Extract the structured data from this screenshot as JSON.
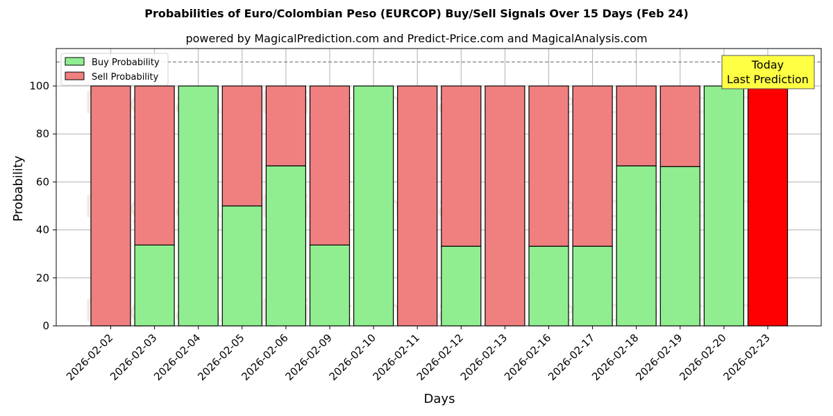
{
  "title": "Probabilities of Euro/Colombian Peso (EURCOP) Buy/Sell Signals Over 15 Days (Feb 24)",
  "subtitle": "powered by MagicalPrediction.com and Predict-Price.com and MagicalAnalysis.com",
  "legend": {
    "buy": "Buy Probability",
    "sell": "Sell Probability"
  },
  "annotation": {
    "line1": "Today",
    "line2": "Last Prediction"
  },
  "watermarks": [
    "MagicalAnalysis.com",
    "MagicalPrediction.com"
  ],
  "colors": {
    "buy": "#90ee90",
    "sell": "#f08080",
    "today": "#ff0000",
    "annotation_bg": "#ffff44"
  },
  "chart_data": {
    "type": "bar",
    "stacked": true,
    "title": "Probabilities of Euro/Colombian Peso (EURCOP) Buy/Sell Signals Over 15 Days (Feb 24)",
    "subtitle": "powered by MagicalPrediction.com and Predict-Price.com and MagicalAnalysis.com",
    "xlabel": "Days",
    "ylabel": "Probability",
    "ylim": [
      0,
      115
    ],
    "yticks": [
      0,
      20,
      40,
      60,
      80,
      100
    ],
    "reference_line": 110,
    "grid": true,
    "legend_position": "upper left",
    "categories": [
      "2026-02-02",
      "2026-02-03",
      "2026-02-04",
      "2026-02-05",
      "2026-02-06",
      "2026-02-09",
      "2026-02-10",
      "2026-02-11",
      "2026-02-12",
      "2026-02-13",
      "2026-02-16",
      "2026-02-17",
      "2026-02-18",
      "2026-02-19",
      "2026-02-20",
      "2026-02-23"
    ],
    "series": [
      {
        "name": "Buy Probability",
        "values": [
          0,
          33.7,
          100,
          50,
          66.7,
          33.7,
          100,
          0,
          33.2,
          0,
          33.2,
          33.2,
          66.7,
          66.4,
          100,
          0
        ]
      },
      {
        "name": "Sell Probability",
        "values": [
          100,
          66.3,
          0,
          50,
          33.3,
          66.3,
          0,
          100,
          66.8,
          100,
          66.8,
          66.8,
          33.3,
          33.6,
          0,
          100
        ]
      }
    ],
    "highlight": {
      "category": "2026-02-23",
      "label": "Today\nLast Prediction",
      "color": "#ff0000"
    }
  }
}
